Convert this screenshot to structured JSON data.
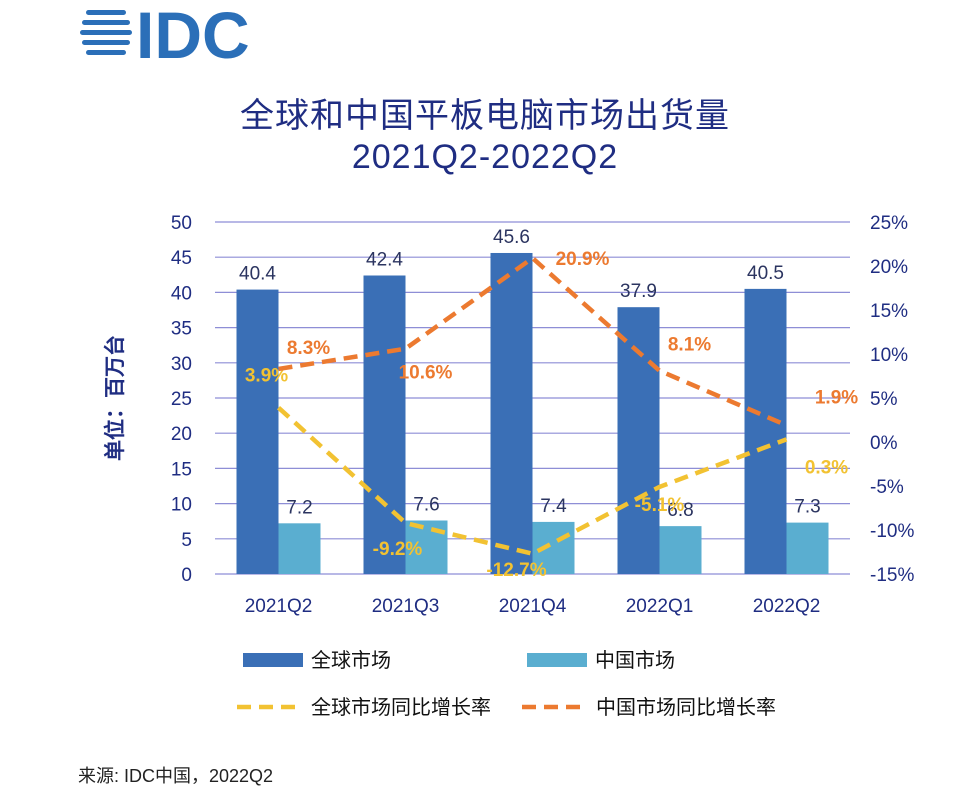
{
  "logo": {
    "text": "IDC",
    "color": "#2b6fb8"
  },
  "title": {
    "line1": "全球和中国平板电脑市场出货量",
    "line2": "2021Q2-2022Q2"
  },
  "source": "来源: IDC中国，2022Q2",
  "colors": {
    "global_bar": "#3a6fb6",
    "china_bar": "#5aaed0",
    "global_yoy": "#f2c232",
    "china_yoy": "#ec7a30",
    "axis_text": "#1f2d82",
    "grid": "#8e8ed6"
  },
  "chart_data": {
    "type": "bar",
    "categories": [
      "2021Q2",
      "2021Q3",
      "2021Q4",
      "2022Q1",
      "2022Q2"
    ],
    "ylabel": "单位：百万台",
    "ylim": [
      0,
      50
    ],
    "yticks": [
      "0",
      "5",
      "10",
      "15",
      "20",
      "25",
      "30",
      "35",
      "40",
      "45",
      "50"
    ],
    "y2lim": [
      -15,
      25
    ],
    "y2ticks": [
      "-15%",
      "-10%",
      "-5%",
      "0%",
      "5%",
      "10%",
      "15%",
      "20%",
      "25%"
    ],
    "series": [
      {
        "name": "全球市场",
        "kind": "bar",
        "values": [
          40.4,
          42.4,
          45.6,
          37.9,
          40.5
        ],
        "labels": [
          "40.4",
          "42.4",
          "45.6",
          "37.9",
          "40.5"
        ]
      },
      {
        "name": "中国市场",
        "kind": "bar",
        "values": [
          7.2,
          7.6,
          7.4,
          6.8,
          7.3
        ],
        "labels": [
          "7.2",
          "7.6",
          "7.4",
          "6.8",
          "7.3"
        ]
      },
      {
        "name": "全球市场同比增长率",
        "kind": "line",
        "axis": "right",
        "values": [
          3.9,
          -9.2,
          -12.7,
          -5.1,
          0.3
        ],
        "labels": [
          "3.9%",
          "-9.2%",
          "-12.7%",
          "-5.1%",
          "0.3%"
        ]
      },
      {
        "name": "中国市场同比增长率",
        "kind": "line",
        "axis": "right",
        "values": [
          8.3,
          10.6,
          20.9,
          8.1,
          1.9
        ],
        "labels": [
          "8.3%",
          "10.6%",
          "20.9%",
          "8.1%",
          "1.9%"
        ]
      }
    ],
    "grid": true,
    "legend_position": "bottom"
  }
}
